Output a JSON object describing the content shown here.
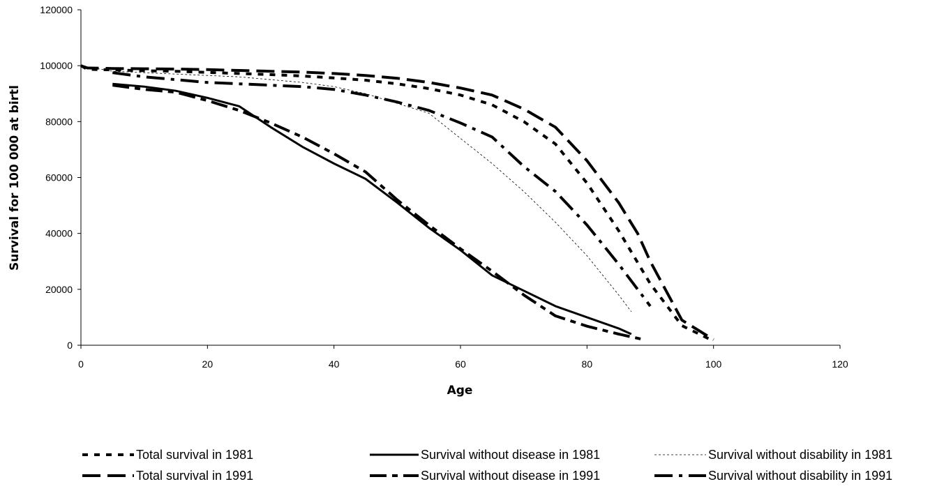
{
  "chart_data": {
    "type": "line",
    "xlabel": "Age",
    "ylabel": "Survival for 100 000 at birtl",
    "xlim": [
      0,
      120
    ],
    "ylim": [
      0,
      120000
    ],
    "x_ticks": [
      "0",
      "20",
      "40",
      "60",
      "80",
      "100",
      "120"
    ],
    "y_ticks": [
      "0",
      "20000",
      "40000",
      "60000",
      "80000",
      "100000",
      "120000"
    ],
    "grid": false,
    "legend_position": "bottom",
    "series": [
      {
        "name": "Total survival in 1981",
        "style": "short-dash",
        "color": "#000000",
        "points": [
          [
            0,
            100000
          ],
          [
            1,
            98700
          ],
          [
            5,
            98500
          ],
          [
            10,
            98200
          ],
          [
            15,
            98000
          ],
          [
            20,
            97600
          ],
          [
            25,
            97200
          ],
          [
            30,
            96800
          ],
          [
            35,
            96300
          ],
          [
            40,
            95600
          ],
          [
            45,
            94800
          ],
          [
            50,
            93500
          ],
          [
            55,
            91800
          ],
          [
            60,
            89500
          ],
          [
            65,
            86000
          ],
          [
            70,
            80000
          ],
          [
            75,
            72000
          ],
          [
            80,
            58000
          ],
          [
            85,
            41000
          ],
          [
            90,
            22000
          ],
          [
            95,
            7000
          ],
          [
            100,
            1500
          ]
        ]
      },
      {
        "name": "Total survival  in 1991",
        "style": "long-dash",
        "color": "#000000",
        "points": [
          [
            0,
            100000
          ],
          [
            1,
            99200
          ],
          [
            5,
            99000
          ],
          [
            10,
            98900
          ],
          [
            15,
            98800
          ],
          [
            20,
            98600
          ],
          [
            25,
            98300
          ],
          [
            30,
            98000
          ],
          [
            35,
            97700
          ],
          [
            40,
            97200
          ],
          [
            45,
            96500
          ],
          [
            50,
            95500
          ],
          [
            55,
            94000
          ],
          [
            60,
            92000
          ],
          [
            65,
            89500
          ],
          [
            70,
            84500
          ],
          [
            75,
            78000
          ],
          [
            80,
            66000
          ],
          [
            85,
            51000
          ],
          [
            88,
            40000
          ],
          [
            90,
            30000
          ],
          [
            95,
            9000
          ],
          [
            100,
            2000
          ]
        ]
      },
      {
        "name": "Survival without disease  in 1981",
        "style": "solid",
        "color": "#000000",
        "points": [
          [
            5,
            93500
          ],
          [
            10,
            92500
          ],
          [
            15,
            91000
          ],
          [
            20,
            88500
          ],
          [
            25,
            85500
          ],
          [
            30,
            78000
          ],
          [
            35,
            71000
          ],
          [
            40,
            65000
          ],
          [
            45,
            59500
          ],
          [
            50,
            51000
          ],
          [
            55,
            42000
          ],
          [
            60,
            34000
          ],
          [
            65,
            25000
          ],
          [
            70,
            19500
          ],
          [
            75,
            14000
          ],
          [
            80,
            10000
          ],
          [
            85,
            6000
          ],
          [
            87,
            4000
          ]
        ]
      },
      {
        "name": "Survival without disease  in 1991",
        "style": "long-dash-short-dash",
        "color": "#000000",
        "points": [
          [
            5,
            93000
          ],
          [
            10,
            91500
          ],
          [
            15,
            90500
          ],
          [
            20,
            87500
          ],
          [
            25,
            84000
          ],
          [
            30,
            79500
          ],
          [
            35,
            74500
          ],
          [
            40,
            68500
          ],
          [
            45,
            62000
          ],
          [
            50,
            52000
          ],
          [
            55,
            43000
          ],
          [
            60,
            34500
          ],
          [
            65,
            26500
          ],
          [
            70,
            18000
          ],
          [
            75,
            10500
          ],
          [
            80,
            6800
          ],
          [
            85,
            4000
          ],
          [
            89,
            2000
          ]
        ]
      },
      {
        "name": "Survival without disability  in 1981",
        "style": "thin-dot",
        "color": "#000000",
        "points": [
          [
            0,
            100000
          ],
          [
            5,
            98000
          ],
          [
            10,
            97500
          ],
          [
            15,
            97000
          ],
          [
            20,
            96500
          ],
          [
            25,
            96000
          ],
          [
            30,
            95000
          ],
          [
            35,
            94000
          ],
          [
            40,
            92500
          ],
          [
            45,
            90000
          ],
          [
            50,
            86500
          ],
          [
            55,
            83000
          ],
          [
            60,
            74000
          ],
          [
            65,
            65000
          ],
          [
            70,
            55000
          ],
          [
            75,
            44000
          ],
          [
            80,
            32000
          ],
          [
            85,
            18000
          ],
          [
            87,
            12000
          ]
        ]
      },
      {
        "name": "Survival without disability  in 1991",
        "style": "long-dash-dot",
        "color": "#000000",
        "points": [
          [
            5,
            97500
          ],
          [
            10,
            96000
          ],
          [
            15,
            95000
          ],
          [
            20,
            94000
          ],
          [
            25,
            93500
          ],
          [
            30,
            93000
          ],
          [
            35,
            92500
          ],
          [
            40,
            91500
          ],
          [
            45,
            89500
          ],
          [
            50,
            87000
          ],
          [
            55,
            84000
          ],
          [
            60,
            79500
          ],
          [
            65,
            74500
          ],
          [
            70,
            64000
          ],
          [
            75,
            55000
          ],
          [
            80,
            43000
          ],
          [
            85,
            29000
          ],
          [
            88,
            20000
          ],
          [
            90,
            14000
          ]
        ]
      }
    ]
  }
}
